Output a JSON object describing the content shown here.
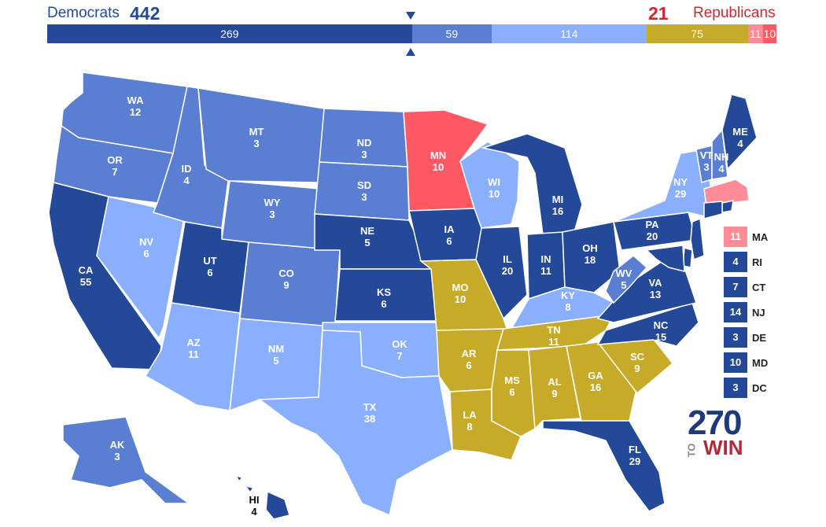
{
  "header": {
    "dem_label": "Democrats",
    "dem_total": "442",
    "rep_total": "21",
    "rep_label": "Republicans"
  },
  "bar": [
    {
      "label": "269",
      "value": 269,
      "color": "#244999"
    },
    {
      "label": "59",
      "value": 59,
      "color": "#5a7ed1"
    },
    {
      "label": "114",
      "value": 114,
      "color": "#8aafff"
    },
    {
      "label": "75",
      "value": 75,
      "color": "#c8aa29"
    },
    {
      "label": "11",
      "value": 11,
      "color": "#ff8b98"
    },
    {
      "label": "10",
      "value": 10,
      "color": "#ff5865"
    }
  ],
  "colors": {
    "solid_dem": "#244999",
    "likely_dem": "#5a7ed1",
    "lean_dem": "#8aafff",
    "tossup": "#c8aa29",
    "lean_rep": "#ff8b98",
    "likely_rep": "#ff5865"
  },
  "states": {
    "WA": {
      "abbr": "WA",
      "ev": "12"
    },
    "OR": {
      "abbr": "OR",
      "ev": "7"
    },
    "CA": {
      "abbr": "CA",
      "ev": "55"
    },
    "NV": {
      "abbr": "NV",
      "ev": "6"
    },
    "ID": {
      "abbr": "ID",
      "ev": "4"
    },
    "MT": {
      "abbr": "MT",
      "ev": "3"
    },
    "WY": {
      "abbr": "WY",
      "ev": "3"
    },
    "UT": {
      "abbr": "UT",
      "ev": "6"
    },
    "AZ": {
      "abbr": "AZ",
      "ev": "11"
    },
    "CO": {
      "abbr": "CO",
      "ev": "9"
    },
    "NM": {
      "abbr": "NM",
      "ev": "5"
    },
    "ND": {
      "abbr": "ND",
      "ev": "3"
    },
    "SD": {
      "abbr": "SD",
      "ev": "3"
    },
    "NE": {
      "abbr": "NE",
      "ev": "5"
    },
    "KS": {
      "abbr": "KS",
      "ev": "6"
    },
    "OK": {
      "abbr": "OK",
      "ev": "7"
    },
    "TX": {
      "abbr": "TX",
      "ev": "38"
    },
    "MN": {
      "abbr": "MN",
      "ev": "10"
    },
    "IA": {
      "abbr": "IA",
      "ev": "6"
    },
    "MO": {
      "abbr": "MO",
      "ev": "10"
    },
    "AR": {
      "abbr": "AR",
      "ev": "6"
    },
    "LA": {
      "abbr": "LA",
      "ev": "8"
    },
    "WI": {
      "abbr": "WI",
      "ev": "10"
    },
    "IL": {
      "abbr": "IL",
      "ev": "20"
    },
    "MI": {
      "abbr": "MI",
      "ev": "16"
    },
    "IN": {
      "abbr": "IN",
      "ev": "11"
    },
    "OH": {
      "abbr": "OH",
      "ev": "18"
    },
    "KY": {
      "abbr": "KY",
      "ev": "8"
    },
    "TN": {
      "abbr": "TN",
      "ev": "11"
    },
    "MS": {
      "abbr": "MS",
      "ev": "6"
    },
    "AL": {
      "abbr": "AL",
      "ev": "9"
    },
    "GA": {
      "abbr": "GA",
      "ev": "16"
    },
    "FL": {
      "abbr": "FL",
      "ev": "29"
    },
    "SC": {
      "abbr": "SC",
      "ev": "9"
    },
    "NC": {
      "abbr": "NC",
      "ev": "15"
    },
    "VA": {
      "abbr": "VA",
      "ev": "13"
    },
    "WV": {
      "abbr": "WV",
      "ev": "5"
    },
    "PA": {
      "abbr": "PA",
      "ev": "20"
    },
    "NY": {
      "abbr": "NY",
      "ev": "29"
    },
    "VT": {
      "abbr": "VT",
      "ev": "3"
    },
    "NH": {
      "abbr": "NH",
      "ev": "4"
    },
    "ME": {
      "abbr": "ME",
      "ev": "4"
    },
    "AK": {
      "abbr": "AK",
      "ev": "3"
    },
    "HI": {
      "abbr": "HI",
      "ev": "4"
    }
  },
  "legend": [
    {
      "ev": "11",
      "abbr": "MA",
      "color": "#ff8b98"
    },
    {
      "ev": "4",
      "abbr": "RI",
      "color": "#244999"
    },
    {
      "ev": "7",
      "abbr": "CT",
      "color": "#244999"
    },
    {
      "ev": "14",
      "abbr": "NJ",
      "color": "#244999"
    },
    {
      "ev": "3",
      "abbr": "DE",
      "color": "#244999"
    },
    {
      "ev": "10",
      "abbr": "MD",
      "color": "#244999"
    },
    {
      "ev": "3",
      "abbr": "DC",
      "color": "#244999"
    }
  ],
  "logo": {
    "number": "270",
    "to": "TO",
    "win": "WIN"
  }
}
